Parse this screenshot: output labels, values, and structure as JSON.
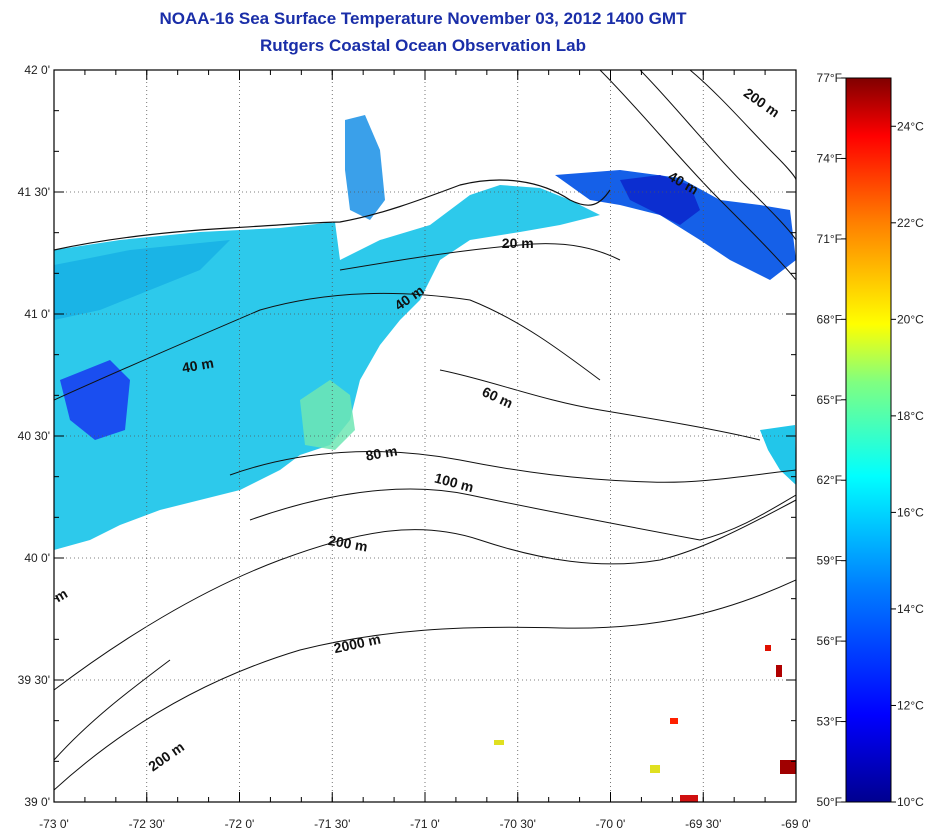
{
  "title": "NOAA-16 Sea Surface Temperature November 03, 2012 1400 GMT",
  "subtitle": "Rutgers Coastal Ocean Observation Lab",
  "map": {
    "lon_range": [
      -73.0,
      -69.0
    ],
    "lat_range": [
      39.0,
      42.0
    ],
    "grid": true,
    "x_ticks": [
      {
        "value": -73.0,
        "label": "-73 0'"
      },
      {
        "value": -72.5,
        "label": "-72 30'"
      },
      {
        "value": -72.0,
        "label": "-72 0'"
      },
      {
        "value": -71.5,
        "label": "-71 30'"
      },
      {
        "value": -71.0,
        "label": "-71 0'"
      },
      {
        "value": -70.5,
        "label": "-70 30'"
      },
      {
        "value": -70.0,
        "label": "-70 0'"
      },
      {
        "value": -69.5,
        "label": "-69 30'"
      },
      {
        "value": -69.0,
        "label": "-69 0'"
      }
    ],
    "y_ticks": [
      {
        "value": 42.0,
        "label": "42 0'"
      },
      {
        "value": 41.5,
        "label": "41 30'"
      },
      {
        "value": 41.0,
        "label": "41 0'"
      },
      {
        "value": 40.5,
        "label": "40 30'"
      },
      {
        "value": 40.0,
        "label": "40 0'"
      },
      {
        "value": 39.5,
        "label": "39 30'"
      },
      {
        "value": 39.0,
        "label": "39 0'"
      }
    ],
    "contour_labels": [
      {
        "text": "200 m",
        "lon": -69.2,
        "lat": 41.85,
        "angle": 35
      },
      {
        "text": "40 m",
        "lon": -69.62,
        "lat": 41.52,
        "angle": 30
      },
      {
        "text": "20 m",
        "lon": -70.5,
        "lat": 41.27,
        "angle": 0
      },
      {
        "text": "40 m",
        "lon": -71.07,
        "lat": 41.05,
        "angle": -35
      },
      {
        "text": "40 m",
        "lon": -72.22,
        "lat": 40.77,
        "angle": -10
      },
      {
        "text": "60 m",
        "lon": -70.62,
        "lat": 40.64,
        "angle": 25
      },
      {
        "text": "80 m",
        "lon": -71.23,
        "lat": 40.41,
        "angle": -10
      },
      {
        "text": "100 m",
        "lon": -70.85,
        "lat": 40.29,
        "angle": 15
      },
      {
        "text": "200 m",
        "lon": -71.42,
        "lat": 40.04,
        "angle": 10
      },
      {
        "text": "2000 m",
        "lon": -71.36,
        "lat": 39.63,
        "angle": -12
      },
      {
        "text": "200 m",
        "lon": -72.38,
        "lat": 39.17,
        "angle": -35
      },
      {
        "text": "m",
        "lon": -72.95,
        "lat": 39.83,
        "angle": -30
      }
    ]
  },
  "colorbar": {
    "range_c": [
      10,
      25
    ],
    "colors": [
      "#00008f",
      "#0000ff",
      "#0080ff",
      "#00ffff",
      "#80ff80",
      "#ffff00",
      "#ff8000",
      "#ff0000",
      "#800000"
    ],
    "celsius_ticks": [
      {
        "value": 10,
        "label": "10°C"
      },
      {
        "value": 12,
        "label": "12°C"
      },
      {
        "value": 14,
        "label": "14°C"
      },
      {
        "value": 16,
        "label": "16°C"
      },
      {
        "value": 18,
        "label": "18°C"
      },
      {
        "value": 20,
        "label": "20°C"
      },
      {
        "value": 22,
        "label": "22°C"
      },
      {
        "value": 24,
        "label": "24°C"
      }
    ],
    "fahrenheit_ticks": [
      {
        "value": 50,
        "label": "50°F"
      },
      {
        "value": 53,
        "label": "53°F"
      },
      {
        "value": 56,
        "label": "56°F"
      },
      {
        "value": 59,
        "label": "59°F"
      },
      {
        "value": 62,
        "label": "62°F"
      },
      {
        "value": 65,
        "label": "65°F"
      },
      {
        "value": 68,
        "label": "68°F"
      },
      {
        "value": 71,
        "label": "71°F"
      },
      {
        "value": 74,
        "label": "74°F"
      },
      {
        "value": 77,
        "label": "77°F"
      }
    ]
  }
}
